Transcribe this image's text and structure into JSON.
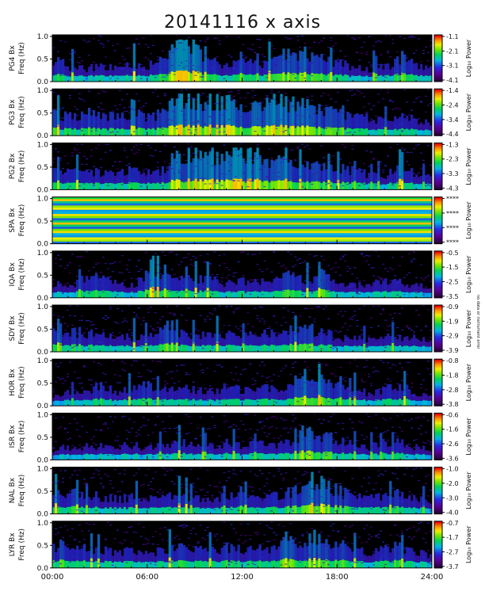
{
  "title": "20141116 x axis",
  "side_note": "no data or instrument error",
  "chart_data": [
    {
      "type": "heatmap",
      "station": "PG4",
      "ylabel": "Freq (Hz)",
      "series": "PG4 Bx",
      "ylim": [
        0,
        1.0
      ],
      "yticks": [
        "0.0",
        "0.5",
        "1.0"
      ],
      "colorbar_label": "Log₁₀ Power",
      "colorbar_ticks": [
        "-1.1",
        "-2.1",
        "-3.1",
        "-4.1"
      ],
      "range": [
        -4.1,
        -1.1
      ],
      "activity": [
        0.55,
        0.35,
        0.3,
        0.4,
        0.3,
        0.45,
        0.35,
        0.6,
        0.85,
        0.75,
        0.5,
        0.4,
        0.45,
        0.4,
        0.5,
        0.7,
        0.65,
        0.5,
        0.45,
        0.35,
        0.3,
        0.35,
        0.55,
        0.35,
        0.3
      ]
    },
    {
      "type": "heatmap",
      "station": "PG3",
      "ylabel": "Freq (Hz)",
      "series": "PG3 Bx",
      "ylim": [
        0,
        1.0
      ],
      "yticks": [
        "0.0",
        "0.5",
        "1.0"
      ],
      "colorbar_label": "Log₁₀ Power",
      "colorbar_ticks": [
        "-1.4",
        "-2.4",
        "-3.4",
        "-4.4"
      ],
      "range": [
        -4.4,
        -1.4
      ],
      "activity": [
        0.5,
        0.45,
        0.55,
        0.5,
        0.45,
        0.5,
        0.45,
        0.55,
        0.9,
        0.85,
        0.8,
        0.75,
        0.7,
        0.65,
        0.75,
        0.8,
        0.7,
        0.6,
        0.5,
        0.45,
        0.4,
        0.35,
        0.45,
        0.35,
        0.3
      ]
    },
    {
      "type": "heatmap",
      "station": "PG2",
      "ylabel": "Freq (Hz)",
      "series": "PG2 Bx",
      "ylim": [
        0,
        1.0
      ],
      "yticks": [
        "0.0",
        "0.5",
        "1.0"
      ],
      "colorbar_label": "Log₁₀ Power",
      "colorbar_ticks": [
        "-1.3",
        "-2.3",
        "-3.3",
        "-4.3"
      ],
      "range": [
        -4.3,
        -1.3
      ],
      "activity": [
        0.45,
        0.4,
        0.45,
        0.4,
        0.4,
        0.45,
        0.4,
        0.5,
        0.85,
        0.85,
        0.8,
        0.85,
        0.8,
        0.75,
        0.7,
        0.75,
        0.65,
        0.55,
        0.5,
        0.45,
        0.35,
        0.3,
        0.6,
        0.35,
        0.3
      ]
    },
    {
      "type": "heatmap",
      "station": "SPA",
      "ylabel": "Freq (Hz)",
      "series": "SPA Bx",
      "ylim": [
        0,
        1.0
      ],
      "yticks": [
        "0.0",
        "0.5",
        "1.0"
      ],
      "colorbar_label": "Log₁₀ Power",
      "colorbar_ticks": [
        "****",
        "****",
        "****",
        "****"
      ],
      "range": [
        0,
        1
      ],
      "no_data": true,
      "activity": []
    },
    {
      "type": "heatmap",
      "station": "IQA",
      "ylabel": "Freq (Hz)",
      "series": "IQA Bx",
      "ylim": [
        0,
        1.0
      ],
      "yticks": [
        "0.0",
        "0.5",
        "1.0"
      ],
      "colorbar_label": "Log₁₀ Power",
      "colorbar_ticks": [
        "-0.5",
        "-1.5",
        "-2.5",
        "-3.5"
      ],
      "range": [
        -3.5,
        -0.5
      ],
      "activity": [
        0.35,
        0.3,
        0.45,
        0.5,
        0.35,
        0.3,
        0.55,
        0.65,
        0.5,
        0.45,
        0.4,
        0.35,
        0.4,
        0.35,
        0.45,
        0.5,
        0.4,
        0.55,
        0.35,
        0.3,
        0.3,
        0.45,
        0.35,
        0.3,
        0.25
      ]
    },
    {
      "type": "heatmap",
      "station": "SDY",
      "ylabel": "Freq (Hz)",
      "series": "SDY Bx",
      "ylim": [
        0,
        1.0
      ],
      "yticks": [
        "0.0",
        "0.5",
        "1.0"
      ],
      "colorbar_label": "Log₁₀ Power",
      "colorbar_ticks": [
        "-0.9",
        "-1.9",
        "-2.9",
        "-3.9"
      ],
      "range": [
        -3.9,
        -0.9
      ],
      "activity": [
        0.45,
        0.5,
        0.45,
        0.4,
        0.35,
        0.35,
        0.4,
        0.75,
        0.45,
        0.4,
        0.45,
        0.4,
        0.35,
        0.4,
        0.45,
        0.5,
        0.55,
        0.45,
        0.35,
        0.3,
        0.3,
        0.35,
        0.35,
        0.3,
        0.25
      ]
    },
    {
      "type": "heatmap",
      "station": "HOR",
      "ylabel": "Freq (Hz)",
      "series": "HOR Bx",
      "ylim": [
        0,
        1.0
      ],
      "yticks": [
        "0.0",
        "0.5",
        "1.0"
      ],
      "colorbar_label": "Log₁₀ Power",
      "colorbar_ticks": [
        "-0.8",
        "-1.8",
        "-2.8",
        "-3.8"
      ],
      "range": [
        -3.8,
        -0.8
      ],
      "activity": [
        0.25,
        0.3,
        0.35,
        0.45,
        0.35,
        0.45,
        0.5,
        0.35,
        0.45,
        0.4,
        0.35,
        0.45,
        0.35,
        0.45,
        0.4,
        0.5,
        0.7,
        0.65,
        0.45,
        0.4,
        0.3,
        0.4,
        0.45,
        0.3,
        0.25
      ]
    },
    {
      "type": "heatmap",
      "station": "ISR",
      "ylabel": "Freq (Hz)",
      "series": "ISR Bx",
      "ylim": [
        0,
        1.0
      ],
      "yticks": [
        "0.0",
        "0.5",
        "1.0"
      ],
      "colorbar_label": "Log₁₀ Power",
      "colorbar_ticks": [
        "-0.6",
        "-1.6",
        "-2.6",
        "-3.6"
      ],
      "range": [
        -3.6,
        -0.6
      ],
      "activity": [
        0.25,
        0.3,
        0.3,
        0.35,
        0.3,
        0.35,
        0.3,
        0.35,
        0.45,
        0.35,
        0.35,
        0.4,
        0.35,
        0.4,
        0.35,
        0.45,
        0.7,
        0.6,
        0.45,
        0.35,
        0.3,
        0.4,
        0.4,
        0.3,
        0.25
      ]
    },
    {
      "type": "heatmap",
      "station": "NAL",
      "ylabel": "Freq (Hz)",
      "series": "NAL Bx",
      "ylim": [
        0,
        1.0
      ],
      "yticks": [
        "0.0",
        "0.5",
        "1.0"
      ],
      "colorbar_label": "Log₁₀ Power",
      "colorbar_ticks": [
        "-1.0",
        "-2.0",
        "-3.0",
        "-4.0"
      ],
      "range": [
        -4.0,
        -1.0
      ],
      "activity": [
        0.55,
        0.5,
        0.45,
        0.4,
        0.35,
        0.4,
        0.35,
        0.4,
        0.45,
        0.4,
        0.35,
        0.45,
        0.4,
        0.4,
        0.45,
        0.5,
        0.7,
        0.75,
        0.55,
        0.4,
        0.35,
        0.45,
        0.5,
        0.35,
        0.3
      ]
    },
    {
      "type": "heatmap",
      "station": "LYR",
      "ylabel": "Freq (Hz)",
      "series": "LYR Bx",
      "ylim": [
        0,
        1.0
      ],
      "yticks": [
        "0.0",
        "0.5",
        "1.0"
      ],
      "colorbar_label": "Log₁₀ Power",
      "colorbar_ticks": [
        "-0.7",
        "-1.7",
        "-2.7",
        "-3.7"
      ],
      "range": [
        -3.7,
        -0.7
      ],
      "activity": [
        0.5,
        0.55,
        0.45,
        0.45,
        0.35,
        0.4,
        0.35,
        0.45,
        0.5,
        0.45,
        0.4,
        0.5,
        0.45,
        0.45,
        0.5,
        0.55,
        0.7,
        0.75,
        0.55,
        0.45,
        0.35,
        0.45,
        0.5,
        0.35,
        0.3
      ]
    }
  ],
  "x_axis": {
    "ticks": [
      "00:00",
      "06:00",
      "12:00",
      "18:00",
      "24:00"
    ],
    "xlim": [
      0,
      24
    ],
    "unit": "hours UT"
  }
}
